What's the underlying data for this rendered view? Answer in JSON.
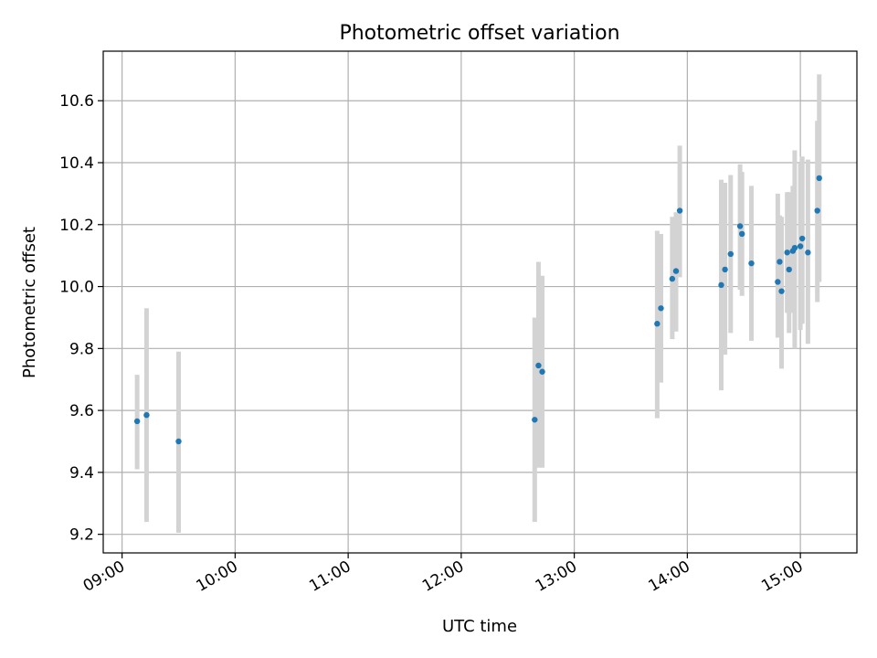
{
  "chart_data": {
    "type": "scatter",
    "title": "Photometric offset variation",
    "xlabel": "UTC time",
    "ylabel": "Photometric offset",
    "x_is_time": true,
    "xlim": [
      "08:50",
      "15:30"
    ],
    "ylim": [
      9.14,
      10.76
    ],
    "x_ticks": [
      "09:00",
      "10:00",
      "11:00",
      "12:00",
      "13:00",
      "14:00",
      "15:00"
    ],
    "y_ticks": [
      "9.2",
      "9.4",
      "9.6",
      "9.8",
      "10.0",
      "10.2",
      "10.4",
      "10.6"
    ],
    "grid": true,
    "point_color": "#1f77b4",
    "errorbar_color": "#d3d3d3",
    "points": [
      {
        "x": "09:08",
        "y": 9.565,
        "lo": 9.41,
        "hi": 9.715
      },
      {
        "x": "09:13",
        "y": 9.585,
        "lo": 9.24,
        "hi": 9.93
      },
      {
        "x": "09:30",
        "y": 9.5,
        "lo": 9.205,
        "hi": 9.79
      },
      {
        "x": "12:39",
        "y": 9.57,
        "lo": 9.24,
        "hi": 9.9
      },
      {
        "x": "12:41",
        "y": 9.745,
        "lo": 9.415,
        "hi": 10.08
      },
      {
        "x": "12:43",
        "y": 9.725,
        "lo": 9.415,
        "hi": 10.035
      },
      {
        "x": "13:44",
        "y": 9.88,
        "lo": 9.575,
        "hi": 10.18
      },
      {
        "x": "13:46",
        "y": 9.93,
        "lo": 9.69,
        "hi": 10.17
      },
      {
        "x": "13:52",
        "y": 10.025,
        "lo": 9.83,
        "hi": 10.225
      },
      {
        "x": "13:54",
        "y": 10.05,
        "lo": 9.855,
        "hi": 10.24
      },
      {
        "x": "13:56",
        "y": 10.245,
        "lo": 10.03,
        "hi": 10.455
      },
      {
        "x": "14:18",
        "y": 10.005,
        "lo": 9.665,
        "hi": 10.345
      },
      {
        "x": "14:20",
        "y": 10.055,
        "lo": 9.78,
        "hi": 10.335
      },
      {
        "x": "14:23",
        "y": 10.105,
        "lo": 9.85,
        "hi": 10.36
      },
      {
        "x": "14:28",
        "y": 10.195,
        "lo": 9.99,
        "hi": 10.395
      },
      {
        "x": "14:29",
        "y": 10.17,
        "lo": 9.97,
        "hi": 10.37
      },
      {
        "x": "14:34",
        "y": 10.075,
        "lo": 9.825,
        "hi": 10.325
      },
      {
        "x": "14:48",
        "y": 10.015,
        "lo": 9.835,
        "hi": 10.3
      },
      {
        "x": "14:49",
        "y": 10.08,
        "lo": 9.905,
        "hi": 10.23
      },
      {
        "x": "14:50",
        "y": 9.985,
        "lo": 9.735,
        "hi": 10.225
      },
      {
        "x": "14:53",
        "y": 10.11,
        "lo": 9.915,
        "hi": 10.305
      },
      {
        "x": "14:54",
        "y": 10.055,
        "lo": 9.85,
        "hi": 10.305
      },
      {
        "x": "14:56",
        "y": 10.115,
        "lo": 9.915,
        "hi": 10.325
      },
      {
        "x": "14:57",
        "y": 10.125,
        "lo": 9.8,
        "hi": 10.44
      },
      {
        "x": "15:00",
        "y": 10.13,
        "lo": 9.86,
        "hi": 10.4
      },
      {
        "x": "15:01",
        "y": 10.155,
        "lo": 9.88,
        "hi": 10.42
      },
      {
        "x": "15:04",
        "y": 10.11,
        "lo": 9.815,
        "hi": 10.41
      },
      {
        "x": "15:09",
        "y": 10.245,
        "lo": 9.95,
        "hi": 10.535
      },
      {
        "x": "15:10",
        "y": 10.35,
        "lo": 10.015,
        "hi": 10.685
      }
    ]
  }
}
